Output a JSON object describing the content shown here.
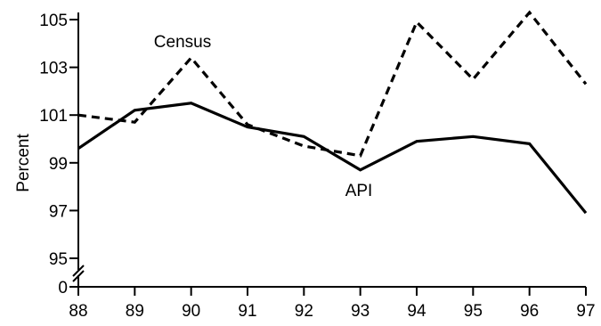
{
  "chart_data": {
    "type": "line",
    "ylabel": "Percent",
    "x": [
      "88",
      "89",
      "90",
      "91",
      "92",
      "93",
      "94",
      "95",
      "96",
      "97"
    ],
    "y_ticks": [
      "105",
      "103",
      "101",
      "99",
      "97",
      "95"
    ],
    "y_zero_label": "0",
    "y_axis_break": true,
    "ylim": [
      94,
      105.5
    ],
    "series": [
      {
        "name": "Census",
        "style": "dashed",
        "values": [
          101.0,
          100.7,
          103.4,
          100.6,
          99.7,
          99.3,
          104.9,
          102.5,
          105.3,
          102.3
        ]
      },
      {
        "name": "API",
        "style": "solid",
        "values": [
          99.6,
          101.2,
          101.5,
          100.5,
          100.1,
          98.7,
          99.9,
          100.1,
          99.8,
          96.9
        ]
      }
    ],
    "grid": false,
    "colors": {
      "line": "#000000",
      "background": "#ffffff"
    }
  }
}
